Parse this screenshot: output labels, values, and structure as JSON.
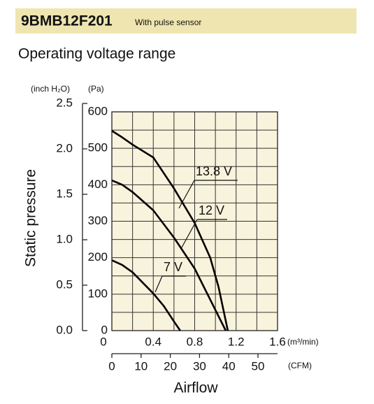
{
  "header": {
    "model": "9BMB12F201",
    "note": "With pulse sensor"
  },
  "chart_data": {
    "type": "line",
    "title": "Operating voltage range",
    "ylabel": "Static pressure",
    "xlabel": "Airflow",
    "y_unit": "(Pa)",
    "y2_unit": "(inch H₂O)",
    "x_unit": "(m³/min)",
    "x2_unit": "(CFM)",
    "xlim": [
      0,
      1.6
    ],
    "xticks": [
      0,
      0.4,
      0.8,
      1.2,
      1.6
    ],
    "xminorticks": [
      0.2,
      0.6,
      1.0,
      1.4
    ],
    "ylim": [
      0,
      600
    ],
    "yticks": [
      0,
      100,
      200,
      300,
      400,
      500,
      600
    ],
    "yminorticks": [
      50,
      150,
      250,
      350,
      450,
      550
    ],
    "y2lim": [
      0,
      2.5
    ],
    "y2ticks": [
      0,
      0.5,
      1.0,
      1.5,
      2.0,
      2.5
    ],
    "x2lim": [
      0,
      50
    ],
    "x2ticks": [
      0,
      10,
      20,
      30,
      40,
      50
    ],
    "grid": true,
    "background": "#f8f3dc",
    "series": [
      {
        "name": "13.8 V",
        "color": "#000000",
        "x": [
          0,
          0.1,
          0.2,
          0.4,
          0.6,
          0.8,
          0.95,
          1.03,
          1.12
        ],
        "values": [
          548,
          530,
          510,
          475,
          390,
          295,
          200,
          120,
          0
        ]
      },
      {
        "name": "12 V",
        "color": "#000000",
        "x": [
          0,
          0.1,
          0.2,
          0.4,
          0.6,
          0.8,
          0.95,
          1.1
        ],
        "values": [
          412,
          400,
          380,
          330,
          255,
          170,
          85,
          0
        ]
      },
      {
        "name": "7 V",
        "color": "#000000",
        "x": [
          0,
          0.1,
          0.2,
          0.4,
          0.5,
          0.6,
          0.66
        ],
        "values": [
          193,
          180,
          160,
          102,
          68,
          25,
          0
        ]
      }
    ]
  }
}
